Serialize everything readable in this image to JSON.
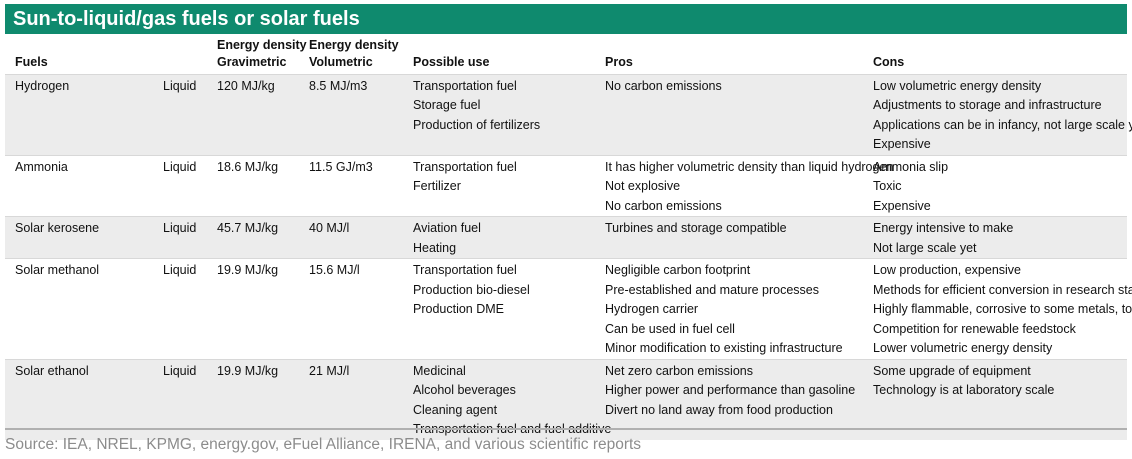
{
  "title": "Sun-to-liquid/gas fuels or solar fuels",
  "headers": {
    "fuels": "Fuels",
    "state": "",
    "grav": [
      "Energy density",
      "Gravimetric"
    ],
    "vol": [
      "Energy density",
      "Volumetric"
    ],
    "use": "Possible use",
    "pros": "Pros",
    "cons": "Cons"
  },
  "rows": [
    {
      "fuel": "Hydrogen",
      "state": "Liquid",
      "grav": "120 MJ/kg",
      "vol": "8.5 MJ/m3",
      "use": [
        "Transportation fuel",
        "Storage fuel",
        "Production of fertilizers"
      ],
      "pros": [
        "No carbon emissions"
      ],
      "cons": [
        "Low volumetric energy density",
        "Adjustments to storage and infrastructure",
        "Applications can be in infancy, not large scale yet",
        "Expensive"
      ]
    },
    {
      "fuel": "Ammonia",
      "state": "Liquid",
      "grav": "18.6 MJ/kg",
      "vol": "11.5 GJ/m3",
      "use": [
        "Transportation fuel",
        "Fertilizer"
      ],
      "pros": [
        "It has higher volumetric density than liquid hydrogen",
        "Not explosive",
        "No carbon emissions"
      ],
      "cons": [
        "Ammonia slip",
        "Toxic",
        "Expensive"
      ]
    },
    {
      "fuel": "Solar kerosene",
      "state": "Liquid",
      "grav": "45.7 MJ/kg",
      "vol": "40 MJ/l",
      "use": [
        "Aviation fuel",
        "Heating"
      ],
      "pros": [
        "Turbines and storage compatible"
      ],
      "cons": [
        "Energy intensive to make",
        "Not large scale yet"
      ]
    },
    {
      "fuel": "Solar methanol",
      "state": "Liquid",
      "grav": "19.9 MJ/kg",
      "vol": "15.6 MJ/l",
      "use": [
        "Transportation fuel",
        "Production bio-diesel",
        "Production DME"
      ],
      "pros": [
        "Negligible carbon footprint",
        "Pre-established and mature processes",
        "Hydrogen carrier",
        "Can be used in fuel cell",
        "Minor modification to existing infrastructure"
      ],
      "cons": [
        "Low production, expensive",
        "Methods for efficient conversion in research stage",
        "Highly flammable, corrosive to some metals, toxic",
        "Competition for renewable feedstock",
        "Lower volumetric energy density"
      ]
    },
    {
      "fuel": "Solar ethanol",
      "state": "Liquid",
      "grav": "19.9 MJ/kg",
      "vol": "21 MJ/l",
      "use": [
        "Medicinal",
        "Alcohol beverages",
        "Cleaning agent",
        "Transportation fuel and fuel additive"
      ],
      "pros": [
        "Net zero carbon emissions",
        "Higher power and performance than gasoline",
        "Divert no land away from food production"
      ],
      "cons": [
        "Some upgrade of equipment",
        "Technology is at laboratory scale"
      ]
    }
  ],
  "source": "Source: IEA, NREL, KPMG, energy.gov, eFuel Alliance, IRENA, and various scientific reports",
  "colors": {
    "title_bg": "#0f8a6e",
    "shade": "#ececec",
    "source_text": "#8c8c8c"
  }
}
